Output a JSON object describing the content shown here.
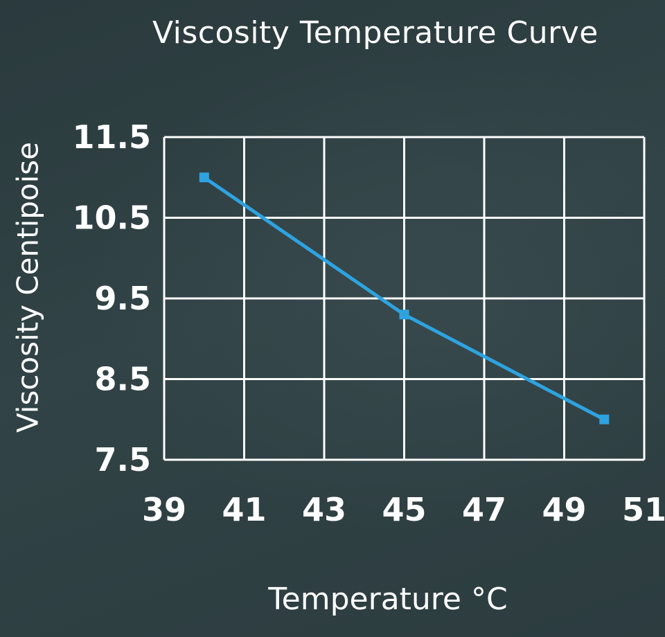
{
  "chart_data": {
    "type": "line",
    "title": "Viscosity Temperature Curve",
    "xlabel": "Temperature °C",
    "ylabel": "Viscosity Centipoise",
    "xlim": [
      39,
      51
    ],
    "ylim": [
      7.5,
      11.5
    ],
    "x_ticks": [
      "39",
      "41",
      "43",
      "45",
      "47",
      "49",
      "51"
    ],
    "y_ticks": [
      "11.5",
      "10.5",
      "9.5",
      "8.5",
      "7.5"
    ],
    "grid": true,
    "series": [
      {
        "name": "Viscosity",
        "color": "#2ea3e0",
        "marker": "square",
        "x": [
          40,
          45,
          50
        ],
        "y": [
          11.0,
          9.3,
          8.0
        ]
      }
    ]
  },
  "colors": {
    "background": "#2e3f42",
    "grid": "#ffffff",
    "line": "#2ea3e0",
    "text": "#ffffff"
  }
}
